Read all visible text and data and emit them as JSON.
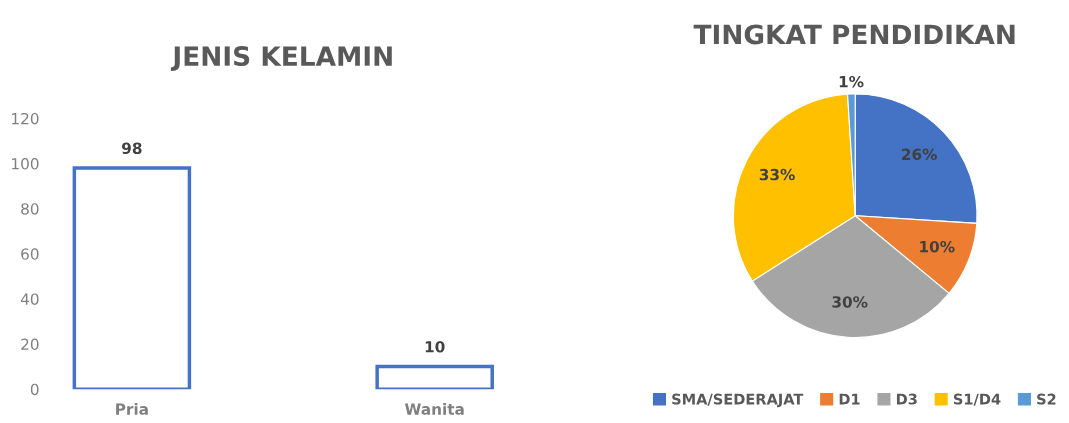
{
  "chart_data": [
    {
      "type": "bar",
      "title": "JENIS KELAMIN",
      "categories": [
        "Pria",
        "Wanita"
      ],
      "values": [
        98,
        10
      ],
      "color": "#4472c4",
      "ylim": [
        0,
        120
      ],
      "yticks": [
        0,
        20,
        40,
        60,
        80,
        100,
        120
      ],
      "grid": false,
      "data_labels": true
    },
    {
      "type": "pie",
      "title": "TINGKAT PENDIDIKAN",
      "categories": [
        "SMA/SEDERAJAT",
        "D1",
        "D3",
        "S1/D4",
        "S2"
      ],
      "values": [
        26,
        10,
        30,
        33,
        1
      ],
      "value_labels": [
        "26%",
        "10%",
        "30%",
        "33%",
        "1%"
      ],
      "colors": [
        "#4472c4",
        "#ed7d31",
        "#a5a5a5",
        "#ffc000",
        "#5b9bd5"
      ],
      "legend": "bottom"
    }
  ]
}
